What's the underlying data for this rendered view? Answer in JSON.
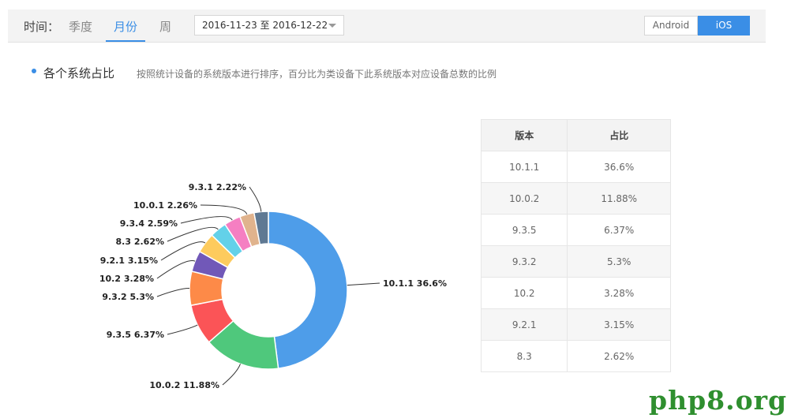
{
  "toolbar": {
    "time_label": "时间：",
    "tabs": [
      "季度",
      "月份",
      "周"
    ],
    "active_tab": "月份",
    "date_range": "2016-11-23 至 2016-12-22",
    "platforms": [
      "Android",
      "iOS"
    ],
    "active_platform": "iOS"
  },
  "section": {
    "title": "各个系统占比",
    "description": "按照统计设备的系统版本进行排序，百分比为类设备下此系统版本对应设备总数的比例"
  },
  "chart_data": {
    "type": "pie",
    "donut": true,
    "title": "",
    "slices": [
      {
        "label": "10.1.1",
        "value": 36.6,
        "display": "10.1.1 36.6%",
        "color": "#4e9de9"
      },
      {
        "label": "10.0.2",
        "value": 11.88,
        "display": "10.0.2 11.88%",
        "color": "#4fc87c"
      },
      {
        "label": "9.3.5",
        "value": 6.37,
        "display": "9.3.5 6.37%",
        "color": "#fb5457"
      },
      {
        "label": "9.3.2",
        "value": 5.3,
        "display": "9.3.2 5.3%",
        "color": "#fd8a48"
      },
      {
        "label": "10.2",
        "value": 3.28,
        "display": "10.2 3.28%",
        "color": "#7158b8"
      },
      {
        "label": "9.2.1",
        "value": 3.15,
        "display": "9.2.1 3.15%",
        "color": "#fdcb5d"
      },
      {
        "label": "8.3",
        "value": 2.62,
        "display": "8.3 2.62%",
        "color": "#63d1e9"
      },
      {
        "label": "9.3.4",
        "value": 2.59,
        "display": "9.3.4 2.59%",
        "color": "#f57fc2"
      },
      {
        "label": "10.0.1",
        "value": 2.26,
        "display": "10.0.1 2.26%",
        "color": "#e0b38d"
      },
      {
        "label": "9.3.1",
        "value": 2.22,
        "display": "9.3.1 2.22%",
        "color": "#5f7993"
      }
    ]
  },
  "table": {
    "headers": [
      "版本",
      "占比"
    ],
    "rows": [
      [
        "10.1.1",
        "36.6%"
      ],
      [
        "10.0.2",
        "11.88%"
      ],
      [
        "9.3.5",
        "6.37%"
      ],
      [
        "9.3.2",
        "5.3%"
      ],
      [
        "10.2",
        "3.28%"
      ],
      [
        "9.2.1",
        "3.15%"
      ],
      [
        "8.3",
        "2.62%"
      ]
    ]
  },
  "watermark": "php8.org"
}
